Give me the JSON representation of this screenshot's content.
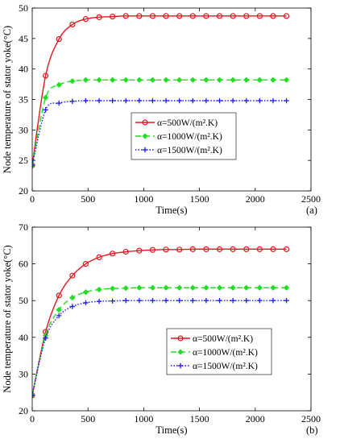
{
  "chart_data": [
    {
      "type": "line",
      "panel_label": "(a)",
      "xlabel": "Time(s)",
      "ylabel": "Node temperature of stator yoke(°C)",
      "xlim": [
        0,
        2500
      ],
      "ylim": [
        20,
        50
      ],
      "xticks": [
        0,
        500,
        1000,
        1500,
        2000,
        2500
      ],
      "yticks": [
        20,
        25,
        30,
        35,
        40,
        45,
        50
      ],
      "grid": false,
      "legend_position": "center-right",
      "x": [
        0,
        120,
        240,
        360,
        480,
        600,
        720,
        840,
        960,
        1080,
        1200,
        1320,
        1440,
        1560,
        1680,
        1800,
        1920,
        2040,
        2160,
        2280
      ],
      "series": [
        {
          "name": "α=500W/(m².K)",
          "color": "#e8141e",
          "line": "solid",
          "marker": "circle",
          "values": [
            24.2,
            38.9,
            44.9,
            47.3,
            48.2,
            48.5,
            48.6,
            48.7,
            48.7,
            48.7,
            48.7,
            48.7,
            48.7,
            48.7,
            48.7,
            48.7,
            48.7,
            48.7,
            48.7,
            48.7
          ]
        },
        {
          "name": "α=1000W/(m².K)",
          "color": "#22dd22",
          "line": "dashed",
          "marker": "diamond",
          "values": [
            24.2,
            35.3,
            37.4,
            38.0,
            38.2,
            38.2,
            38.2,
            38.2,
            38.2,
            38.2,
            38.2,
            38.2,
            38.2,
            38.2,
            38.2,
            38.2,
            38.2,
            38.2,
            38.2,
            38.2
          ]
        },
        {
          "name": "α=1500W/(m².K)",
          "color": "#1a1aff",
          "line": "dotted",
          "marker": "plus",
          "values": [
            24.2,
            33.3,
            34.4,
            34.7,
            34.8,
            34.8,
            34.8,
            34.8,
            34.8,
            34.8,
            34.8,
            34.8,
            34.8,
            34.8,
            34.8,
            34.8,
            34.8,
            34.8,
            34.8,
            34.8
          ]
        }
      ]
    },
    {
      "type": "line",
      "panel_label": "(b)",
      "xlabel": "Time(s)",
      "ylabel": "Node temperature of stator yoke(°C)",
      "xlim": [
        0,
        2500
      ],
      "ylim": [
        20,
        70
      ],
      "xticks": [
        0,
        500,
        1000,
        1500,
        2000,
        2500
      ],
      "yticks": [
        20,
        30,
        40,
        50,
        60,
        70
      ],
      "grid": false,
      "legend_position": "center-right",
      "x": [
        0,
        120,
        240,
        360,
        480,
        600,
        720,
        840,
        960,
        1080,
        1200,
        1320,
        1440,
        1560,
        1680,
        1800,
        1920,
        2040,
        2160,
        2280
      ],
      "series": [
        {
          "name": "α=500W/(m².K)",
          "color": "#e8141e",
          "line": "solid",
          "marker": "circle",
          "values": [
            24.2,
            41.5,
            51.4,
            56.8,
            60.0,
            61.8,
            62.8,
            63.3,
            63.6,
            63.8,
            63.9,
            63.9,
            64.0,
            64.0,
            64.0,
            64.0,
            64.0,
            64.0,
            64.0,
            64.0
          ]
        },
        {
          "name": "α=1000W/(m².K)",
          "color": "#22dd22",
          "line": "dashed",
          "marker": "diamond",
          "values": [
            24.2,
            40.5,
            47.5,
            50.8,
            52.3,
            53.0,
            53.3,
            53.4,
            53.5,
            53.5,
            53.5,
            53.5,
            53.5,
            53.5,
            53.5,
            53.5,
            53.5,
            53.5,
            53.5,
            53.5
          ]
        },
        {
          "name": "α=1500W/(m².K)",
          "color": "#1a1aff",
          "line": "dotted",
          "marker": "plus",
          "values": [
            24.2,
            39.8,
            45.9,
            48.4,
            49.4,
            49.8,
            49.9,
            50.0,
            50.0,
            50.0,
            50.0,
            50.0,
            50.0,
            50.0,
            50.0,
            50.0,
            50.0,
            50.0,
            50.0,
            50.0
          ]
        }
      ]
    }
  ]
}
